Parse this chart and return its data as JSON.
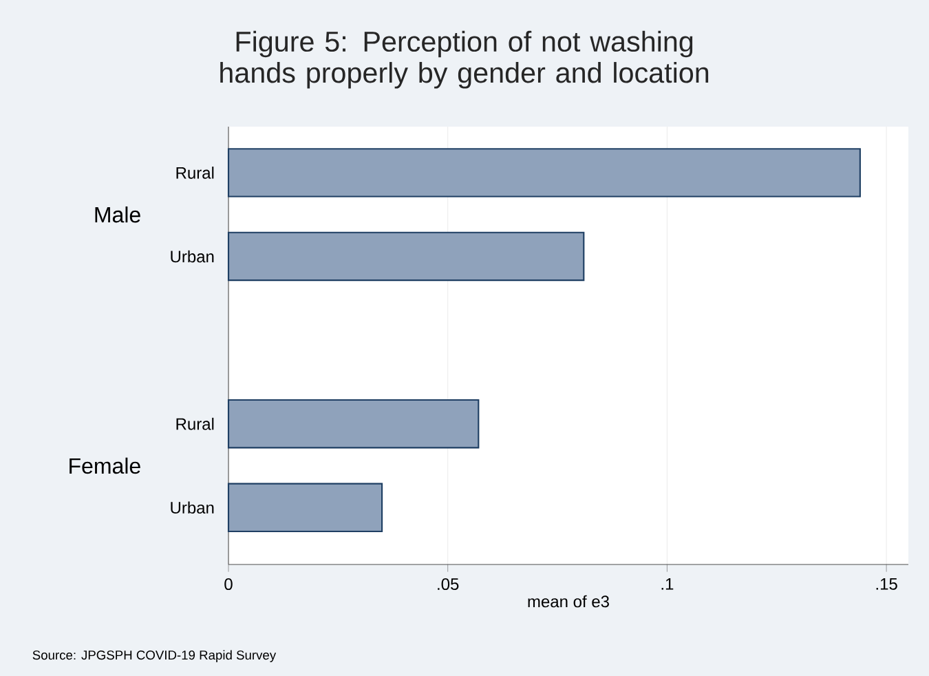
{
  "chart_data": {
    "type": "bar",
    "orientation": "horizontal",
    "title": "Figure 5: Perception of not washing hands properly by gender and location",
    "categories": [
      "Rural",
      "Urban",
      null,
      "Rural",
      "Urban"
    ],
    "values": [
      0.144,
      0.081,
      null,
      0.057,
      0.035
    ],
    "color": "#8fa2bb",
    "xlabel": "mean of e3",
    "xlim": [
      0,
      0.155
    ],
    "xticks": [
      {
        "value": 0,
        "label": "0"
      },
      {
        "value": 0.05,
        "label": ".05"
      },
      {
        "value": 0.1,
        "label": ".1"
      },
      {
        "value": 0.15,
        "label": ".15"
      }
    ],
    "grid": "x",
    "annotations": [
      "Male",
      "Female",
      "Source: JPGSPH COVID-19 Rapid Survey"
    ]
  }
}
